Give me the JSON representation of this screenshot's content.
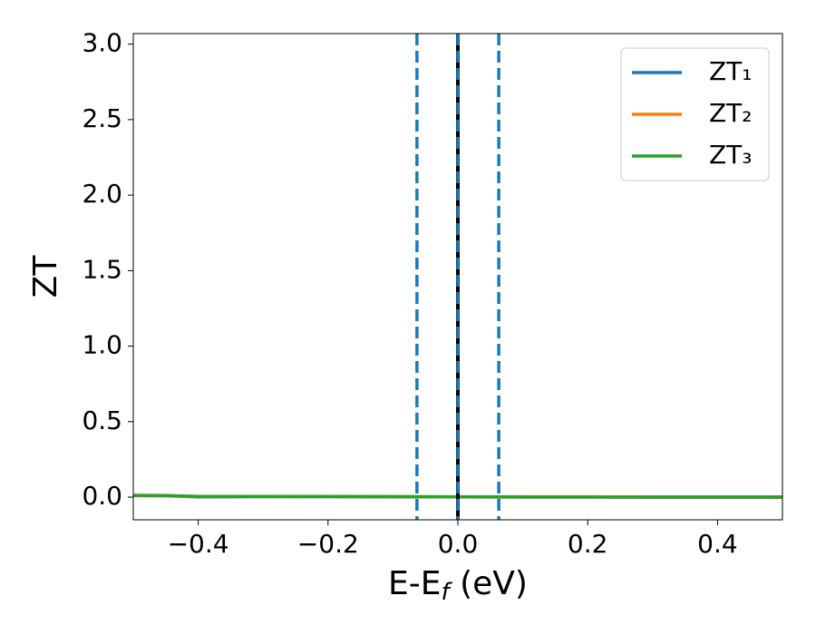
{
  "chart_data": {
    "type": "line",
    "x_label": [
      "E-E",
      "f",
      " (eV)"
    ],
    "y_label": "ZT",
    "x": [
      -0.5,
      -0.45,
      -0.4,
      -0.3,
      -0.2,
      -0.1,
      0,
      0.1,
      0.2,
      0.3,
      0.4,
      0.5
    ],
    "series": [
      {
        "name": "ZT₁",
        "color": "#1f77b4",
        "values": [
          0.01,
          0.009,
          0.002,
          0.003,
          0.003,
          0.002,
          0.002,
          0.001,
          0.001,
          0,
          0,
          0
        ]
      },
      {
        "name": "ZT₂",
        "color": "#ff7f0e",
        "values": [
          0.011,
          0.01,
          0.004,
          0.004,
          0.004,
          0.003,
          0.002,
          0.001,
          0.001,
          0,
          0,
          0
        ]
      },
      {
        "name": "ZT₃",
        "color": "#2ca02c",
        "values": [
          0.012,
          0.011,
          0.005,
          0.005,
          0.004,
          0.003,
          0.002,
          0.001,
          0.001,
          0,
          0,
          0
        ]
      }
    ],
    "vlines": [
      {
        "x": 0,
        "color": "#000000",
        "style": "solid"
      },
      {
        "x": -0.063,
        "color": "#1f77b4",
        "style": "dashed"
      },
      {
        "x": 0,
        "color": "#1f77b4",
        "style": "dashed"
      },
      {
        "x": 0.063,
        "color": "#1f77b4",
        "style": "dashed"
      }
    ],
    "xlim": [
      -0.5,
      0.5
    ],
    "ylim": [
      -0.15,
      3.07
    ],
    "xticks": [
      {
        "value": -0.4,
        "label": "−0.4"
      },
      {
        "value": -0.2,
        "label": "−0.2"
      },
      {
        "value": 0,
        "label": "0.0"
      },
      0.2,
      0.4
    ],
    "yticks": [
      {
        "value": 0,
        "label": "0.0"
      },
      0.5,
      {
        "value": 1,
        "label": "1.0"
      },
      1.5,
      {
        "value": 2,
        "label": "2.0"
      },
      2.5,
      {
        "value": 3,
        "label": "3.0"
      }
    ],
    "legend": "upper right",
    "grid": false
  }
}
